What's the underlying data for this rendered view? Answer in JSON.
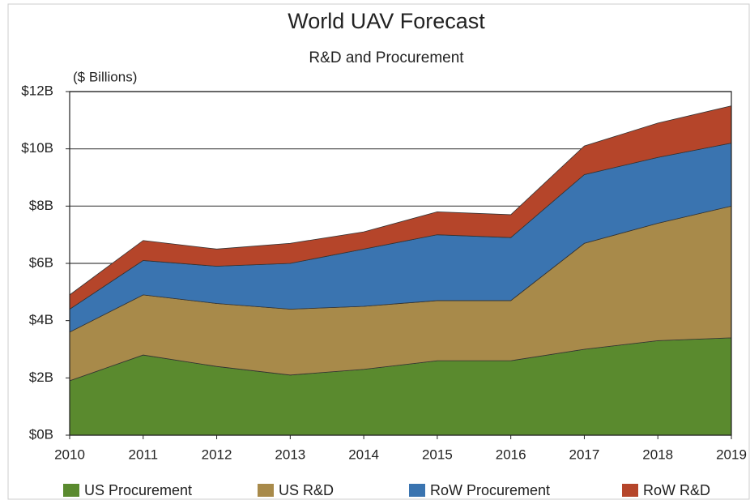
{
  "chart_data": {
    "type": "area",
    "stacked": true,
    "title": "World UAV Forecast",
    "subtitle": "R&D and Procurement",
    "y_label": "($ Billions)",
    "x": [
      2010,
      2011,
      2012,
      2013,
      2014,
      2015,
      2016,
      2017,
      2018,
      2019
    ],
    "xlim": [
      2010,
      2019
    ],
    "xticks": [
      2010,
      2011,
      2012,
      2013,
      2014,
      2015,
      2016,
      2017,
      2018,
      2019
    ],
    "ylim": [
      0,
      12
    ],
    "yticks": [
      {
        "value": 0,
        "label": "$0B"
      },
      {
        "value": 2,
        "label": "$2B"
      },
      {
        "value": 4,
        "label": "$4B"
      },
      {
        "value": 6,
        "label": "$6B"
      },
      {
        "value": 8,
        "label": "$8B"
      },
      {
        "value": 10,
        "label": "$10B"
      },
      {
        "value": 12,
        "label": "$12B"
      }
    ],
    "grid": true,
    "legend": "bottom",
    "series": [
      {
        "name": "US Procurement",
        "color": "#5a8a2e",
        "values": [
          1.9,
          2.8,
          2.4,
          2.1,
          2.3,
          2.6,
          2.6,
          3.0,
          3.3,
          3.4
        ]
      },
      {
        "name": "US R&D",
        "color": "#a88a4a",
        "values": [
          1.7,
          2.1,
          2.2,
          2.3,
          2.2,
          2.1,
          2.1,
          3.7,
          4.1,
          4.6
        ]
      },
      {
        "name": "RoW Procurement",
        "color": "#3a74b0",
        "values": [
          0.8,
          1.2,
          1.3,
          1.6,
          2.0,
          2.3,
          2.2,
          2.4,
          2.3,
          2.2
        ]
      },
      {
        "name": "RoW R&D",
        "color": "#b5452a",
        "values": [
          0.5,
          0.7,
          0.6,
          0.7,
          0.6,
          0.8,
          0.8,
          1.0,
          1.2,
          1.3
        ]
      }
    ]
  }
}
